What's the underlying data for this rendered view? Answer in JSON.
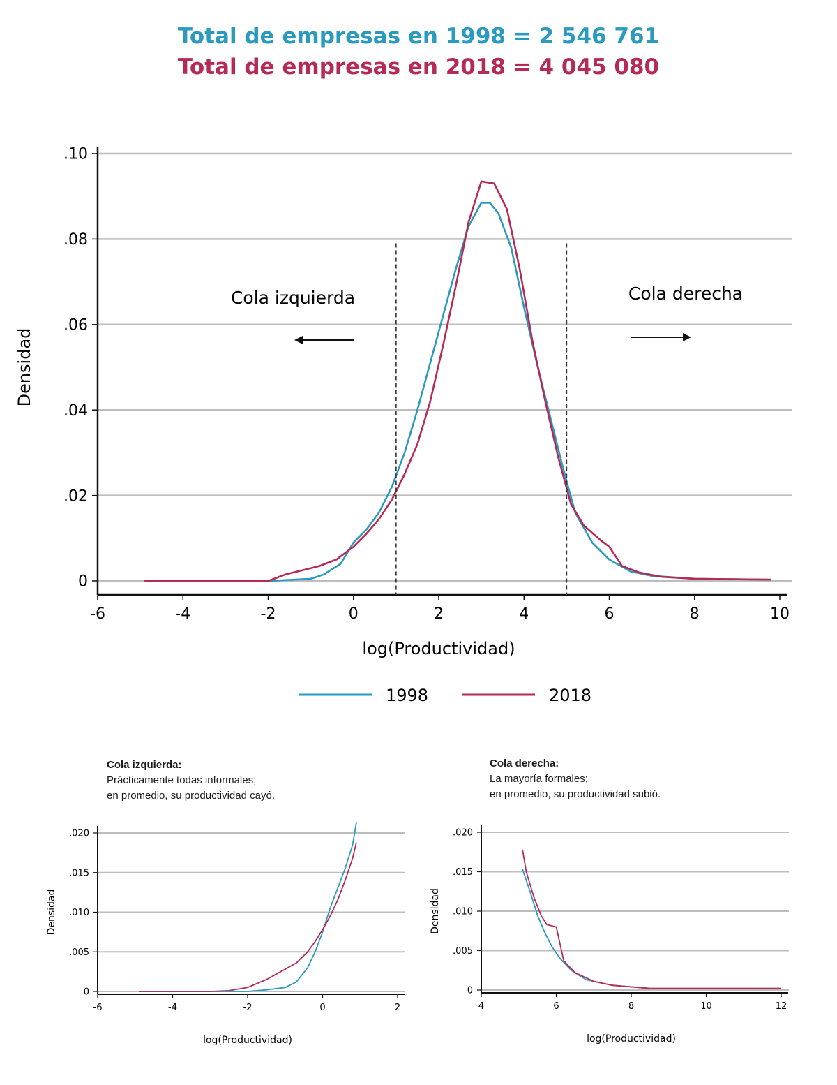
{
  "header": {
    "line1": "Total de empresas en 1998 = 2 546 761",
    "line2": "Total de empresas en 2018 = 4 045 080"
  },
  "colors": {
    "s1998": "#2a9bbf",
    "s2018": "#b52a56",
    "grid": "#bdbdbd",
    "axis": "#111111"
  },
  "chart_data": [
    {
      "type": "line",
      "title": "",
      "xlabel": "log(Productividad)",
      "ylabel": "Densidad",
      "xlim": [
        -6,
        10
      ],
      "ylim": [
        0,
        0.1
      ],
      "xticks": [
        -6,
        -4,
        -2,
        0,
        2,
        4,
        6,
        8,
        10
      ],
      "yticks": [
        0,
        0.02,
        0.04,
        0.06,
        0.08,
        0.1
      ],
      "ytick_labels": [
        "0",
        ".02",
        ".04",
        ".06",
        ".08",
        ".10"
      ],
      "grid": true,
      "legend": "bottom",
      "annotations": [
        {
          "text": "Cola izquierda",
          "arrow": "left"
        },
        {
          "text": "Cola derecha",
          "arrow": "right"
        }
      ],
      "cutoffs": [
        1,
        5
      ],
      "series": [
        {
          "name": "1998",
          "points": [
            [
              -4.9,
              0
            ],
            [
              -3,
              0
            ],
            [
              -2,
              0
            ],
            [
              -1.6,
              0.0002
            ],
            [
              -1,
              0.0005
            ],
            [
              -0.7,
              0.0015
            ],
            [
              -0.3,
              0.004
            ],
            [
              0,
              0.009
            ],
            [
              0.3,
              0.012
            ],
            [
              0.6,
              0.016
            ],
            [
              0.9,
              0.022
            ],
            [
              1.2,
              0.03
            ],
            [
              1.5,
              0.04
            ],
            [
              1.8,
              0.051
            ],
            [
              2.1,
              0.062
            ],
            [
              2.4,
              0.073
            ],
            [
              2.7,
              0.083
            ],
            [
              3.0,
              0.0885
            ],
            [
              3.2,
              0.0885
            ],
            [
              3.4,
              0.086
            ],
            [
              3.7,
              0.078
            ],
            [
              4.0,
              0.064
            ],
            [
              4.3,
              0.051
            ],
            [
              4.6,
              0.039
            ],
            [
              4.9,
              0.027
            ],
            [
              5.2,
              0.016
            ],
            [
              5.6,
              0.009
            ],
            [
              6.0,
              0.005
            ],
            [
              6.5,
              0.0022
            ],
            [
              7.0,
              0.0012
            ],
            [
              8.0,
              0.0005
            ],
            [
              9.8,
              0.0003
            ]
          ]
        },
        {
          "name": "2018",
          "points": [
            [
              -4.9,
              0
            ],
            [
              -3,
              0
            ],
            [
              -2,
              0
            ],
            [
              -1.6,
              0.0015
            ],
            [
              -1.2,
              0.0025
            ],
            [
              -0.8,
              0.0035
            ],
            [
              -0.4,
              0.005
            ],
            [
              0,
              0.008
            ],
            [
              0.3,
              0.011
            ],
            [
              0.6,
              0.0145
            ],
            [
              0.9,
              0.019
            ],
            [
              1.2,
              0.025
            ],
            [
              1.5,
              0.032
            ],
            [
              1.8,
              0.042
            ],
            [
              2.1,
              0.055
            ],
            [
              2.4,
              0.069
            ],
            [
              2.7,
              0.084
            ],
            [
              3.0,
              0.0935
            ],
            [
              3.3,
              0.093
            ],
            [
              3.6,
              0.087
            ],
            [
              3.9,
              0.073
            ],
            [
              4.2,
              0.056
            ],
            [
              4.5,
              0.042
            ],
            [
              4.8,
              0.029
            ],
            [
              5.1,
              0.018
            ],
            [
              5.4,
              0.013
            ],
            [
              5.8,
              0.0095
            ],
            [
              6.0,
              0.008
            ],
            [
              6.3,
              0.0035
            ],
            [
              6.7,
              0.002
            ],
            [
              7.2,
              0.001
            ],
            [
              8.0,
              0.0005
            ],
            [
              9.8,
              0.0003
            ]
          ]
        }
      ]
    },
    {
      "type": "line",
      "caption_title": "Cola izquierda:",
      "caption_lines": [
        "Prácticamente todas informales;",
        "en promedio, su productividad cayó."
      ],
      "xlabel": "log(Productividad)",
      "ylabel": "Densidad",
      "xlim": [
        -6,
        2
      ],
      "ylim": [
        0,
        0.02
      ],
      "xticks": [
        -6,
        -4,
        -2,
        0,
        2
      ],
      "yticks": [
        0,
        0.005,
        0.01,
        0.015,
        0.02
      ],
      "ytick_labels": [
        "0",
        ".005",
        ".010",
        ".015",
        ".020"
      ],
      "grid": true,
      "series": [
        {
          "name": "1998",
          "points": [
            [
              -4.9,
              0
            ],
            [
              -3,
              0
            ],
            [
              -2,
              0
            ],
            [
              -1.5,
              0.0002
            ],
            [
              -1,
              0.0005
            ],
            [
              -0.7,
              0.0012
            ],
            [
              -0.4,
              0.003
            ],
            [
              -0.2,
              0.005
            ],
            [
              0,
              0.0075
            ],
            [
              0.2,
              0.0105
            ],
            [
              0.4,
              0.013
            ],
            [
              0.6,
              0.0155
            ],
            [
              0.8,
              0.0185
            ],
            [
              0.9,
              0.0213
            ]
          ]
        },
        {
          "name": "2018",
          "points": [
            [
              -4.9,
              0
            ],
            [
              -3,
              0
            ],
            [
              -2.5,
              0.0001
            ],
            [
              -2,
              0.0005
            ],
            [
              -1.5,
              0.0015
            ],
            [
              -1,
              0.0028
            ],
            [
              -0.7,
              0.0036
            ],
            [
              -0.4,
              0.005
            ],
            [
              -0.2,
              0.0063
            ],
            [
              0,
              0.0078
            ],
            [
              0.2,
              0.0095
            ],
            [
              0.4,
              0.0115
            ],
            [
              0.6,
              0.014
            ],
            [
              0.8,
              0.0168
            ],
            [
              0.9,
              0.0188
            ]
          ]
        }
      ]
    },
    {
      "type": "line",
      "caption_title": "Cola derecha:",
      "caption_lines": [
        "La mayoría formales;",
        "en promedio, su productividad subió."
      ],
      "xlabel": "log(Productividad)",
      "ylabel": "Densidad",
      "xlim": [
        4,
        12
      ],
      "ylim": [
        0,
        0.02
      ],
      "xticks": [
        4,
        6,
        8,
        10,
        12
      ],
      "yticks": [
        0,
        0.005,
        0.01,
        0.015,
        0.02
      ],
      "ytick_labels": [
        "0",
        ".005",
        ".010",
        ".015",
        ".020"
      ],
      "grid": true,
      "series": [
        {
          "name": "1998",
          "points": [
            [
              5.1,
              0.0153
            ],
            [
              5.3,
              0.0125
            ],
            [
              5.5,
              0.0095
            ],
            [
              5.7,
              0.0072
            ],
            [
              5.9,
              0.0054
            ],
            [
              6.1,
              0.004
            ],
            [
              6.4,
              0.0025
            ],
            [
              6.8,
              0.0013
            ],
            [
              7.5,
              0.0006
            ],
            [
              8.5,
              0.0002
            ],
            [
              12,
              0.0002
            ]
          ]
        },
        {
          "name": "2018",
          "points": [
            [
              5.1,
              0.0178
            ],
            [
              5.2,
              0.015
            ],
            [
              5.4,
              0.0118
            ],
            [
              5.6,
              0.0094
            ],
            [
              5.75,
              0.0083
            ],
            [
              6.0,
              0.008
            ],
            [
              6.2,
              0.0037
            ],
            [
              6.5,
              0.0022
            ],
            [
              7.0,
              0.0011
            ],
            [
              7.5,
              0.0006
            ],
            [
              8.5,
              0.0002
            ],
            [
              12,
              0.0002
            ]
          ]
        }
      ]
    }
  ]
}
